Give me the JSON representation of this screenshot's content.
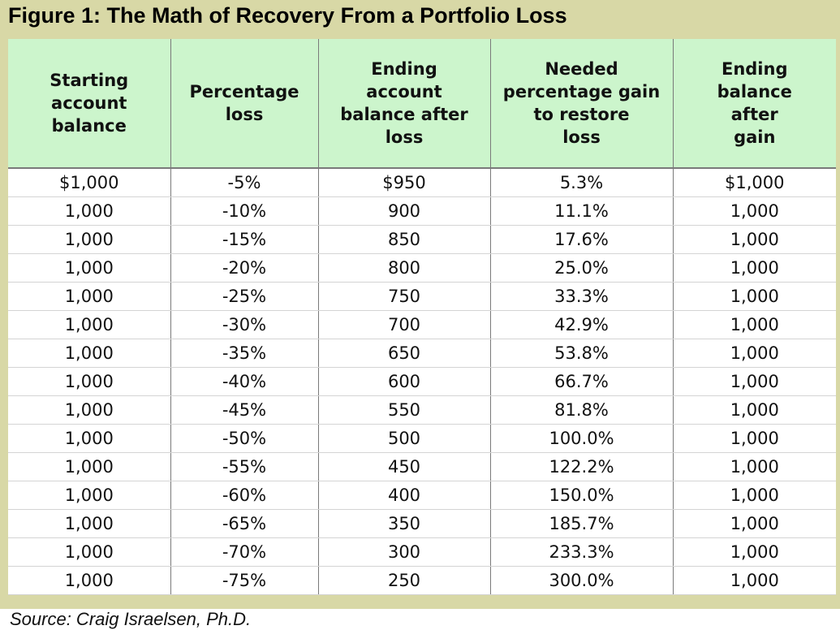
{
  "chart_data": {
    "type": "table",
    "title": "Figure 1: The Math of Recovery From a Portfolio Loss",
    "columns": [
      "Starting account balance",
      "Percentage loss",
      "Ending account balance after loss",
      "Needed percentage gain to restore loss",
      "Ending balance after gain"
    ],
    "rows": [
      [
        "$1,000",
        "-5%",
        "$950",
        "5.3%",
        "$1,000"
      ],
      [
        "1,000",
        "-10%",
        "900",
        "11.1%",
        "1,000"
      ],
      [
        "1,000",
        "-15%",
        "850",
        "17.6%",
        "1,000"
      ],
      [
        "1,000",
        "-20%",
        "800",
        "25.0%",
        "1,000"
      ],
      [
        "1,000",
        "-25%",
        "750",
        "33.3%",
        "1,000"
      ],
      [
        "1,000",
        "-30%",
        "700",
        "42.9%",
        "1,000"
      ],
      [
        "1,000",
        "-35%",
        "650",
        "53.8%",
        "1,000"
      ],
      [
        "1,000",
        "-40%",
        "600",
        "66.7%",
        "1,000"
      ],
      [
        "1,000",
        "-45%",
        "550",
        "81.8%",
        "1,000"
      ],
      [
        "1,000",
        "-50%",
        "500",
        "100.0%",
        "1,000"
      ],
      [
        "1,000",
        "-55%",
        "450",
        "122.2%",
        "1,000"
      ],
      [
        "1,000",
        "-60%",
        "400",
        "150.0%",
        "1,000"
      ],
      [
        "1,000",
        "-65%",
        "350",
        "185.7%",
        "1,000"
      ],
      [
        "1,000",
        "-70%",
        "300",
        "233.3%",
        "1,000"
      ],
      [
        "1,000",
        "-75%",
        "250",
        "300.0%",
        "1,000"
      ]
    ],
    "source": "Source: Craig Israelsen, Ph.D."
  },
  "colors": {
    "frame": "#d8d8a6",
    "header_fill": "#ccf5cc",
    "body_fill": "#ffffff",
    "text": "#111111"
  }
}
